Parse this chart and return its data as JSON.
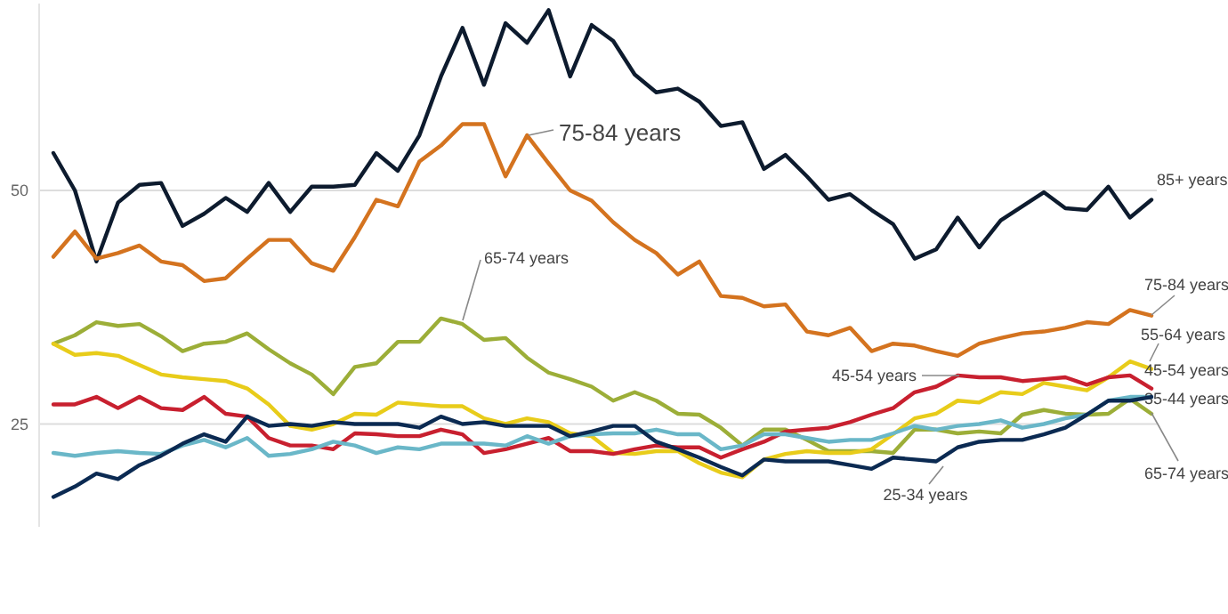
{
  "chart_data": {
    "type": "line",
    "categories": [
      null,
      null,
      null,
      null,
      null,
      null,
      null,
      null,
      null,
      null,
      null,
      null,
      null,
      null,
      null,
      null,
      null,
      null,
      null,
      null,
      null,
      null,
      null,
      null,
      null,
      null,
      null,
      null,
      null,
      null,
      null,
      null,
      null,
      null,
      null,
      null,
      null,
      null,
      null,
      null,
      null,
      null,
      null,
      null,
      null,
      null,
      null,
      null,
      null,
      null,
      null,
      null
    ],
    "ylim": [
      14,
      70
    ],
    "yticks": [
      25,
      50
    ],
    "grid": "y",
    "marker": "none",
    "line_style": "solid",
    "annotations": [
      "75-84 years",
      "65-74 years",
      "45-54 years"
    ],
    "series": [
      {
        "name": "85+ years",
        "color": "#0d1b2e",
        "values": [
          54,
          50,
          42.4,
          48.7,
          50.6,
          50.8,
          46.2,
          47.5,
          49.2,
          47.7,
          50.8,
          47.7,
          50.4,
          50.4,
          50.6,
          54,
          52.1,
          55.9,
          62.2,
          67.4,
          61.3,
          67.9,
          65.8,
          69.3,
          62.2,
          67.7,
          66,
          62.4,
          60.5,
          60.9,
          59.5,
          56.9,
          57.3,
          52.3,
          53.8,
          51.5,
          49,
          49.6,
          47.9,
          46.4,
          42.7,
          43.7,
          47.1,
          43.9,
          46.8,
          48.3,
          49.8,
          48.1,
          47.9,
          50.4,
          47.1,
          49
        ]
      },
      {
        "name": "75-84 years",
        "color": "#d4731f",
        "values": [
          42.9,
          45.6,
          42.7,
          43.3,
          44.1,
          42.4,
          42,
          40.3,
          40.6,
          42.7,
          44.7,
          44.7,
          42.2,
          41.4,
          45,
          49,
          48.3,
          53.1,
          54.8,
          57.1,
          57.1,
          51.5,
          55.9,
          52.9,
          50,
          48.9,
          46.6,
          44.7,
          43.3,
          41,
          42.4,
          38.7,
          38.5,
          37.6,
          37.8,
          34.9,
          34.5,
          35.3,
          32.8,
          33.6,
          33.4,
          32.8,
          32.3,
          33.6,
          34.2,
          34.7,
          34.9,
          35.3,
          35.9,
          35.7,
          37.2,
          36.6
        ]
      },
      {
        "name": "65-74 years",
        "color": "#9cae38",
        "values": [
          33.6,
          34.5,
          35.9,
          35.5,
          35.7,
          34.4,
          32.8,
          33.6,
          33.8,
          34.7,
          33,
          31.5,
          30.3,
          28.2,
          31.1,
          31.5,
          33.8,
          33.8,
          36.3,
          35.7,
          34,
          34.2,
          32.1,
          30.5,
          29.8,
          29,
          27.5,
          28.4,
          27.5,
          26.1,
          26,
          24.6,
          22.7,
          24.4,
          24.4,
          23.3,
          22.1,
          22.1,
          22.1,
          21.9,
          24.4,
          24.4,
          24,
          24.2,
          24,
          26,
          26.5,
          26.1,
          26,
          26.1,
          27.7,
          26.1
        ]
      },
      {
        "name": "55-64 years",
        "color": "#e8cc1a",
        "values": [
          33.6,
          32.4,
          32.6,
          32.3,
          31.3,
          30.3,
          30,
          29.8,
          29.6,
          28.8,
          27.1,
          24.8,
          24.4,
          25,
          26.1,
          26,
          27.3,
          27.1,
          26.9,
          26.9,
          25.6,
          25,
          25.6,
          25.2,
          24,
          23.7,
          21.9,
          21.8,
          22.1,
          22.1,
          20.8,
          19.8,
          19.3,
          21.2,
          21.8,
          22.1,
          21.9,
          21.9,
          22.3,
          23.9,
          25.6,
          26.1,
          27.5,
          27.3,
          28.4,
          28.2,
          29.4,
          29,
          28.6,
          30,
          31.7,
          30.9
        ]
      },
      {
        "name": "45-54 years",
        "color": "#c8202f",
        "values": [
          27.1,
          27.1,
          27.9,
          26.7,
          27.9,
          26.7,
          26.5,
          27.9,
          26.1,
          25.8,
          23.5,
          22.7,
          22.7,
          22.3,
          24,
          23.9,
          23.7,
          23.7,
          24.4,
          23.9,
          21.9,
          22.3,
          22.9,
          23.5,
          22.1,
          22.1,
          21.8,
          22.3,
          22.7,
          22.5,
          22.5,
          21.4,
          22.3,
          23.1,
          24.2,
          24.4,
          24.6,
          25.2,
          26,
          26.7,
          28.4,
          29,
          30.2,
          30,
          30,
          29.6,
          29.8,
          30,
          29.2,
          30,
          30.2,
          28.8
        ]
      },
      {
        "name": "35-44 years",
        "color": "#6ab7c8",
        "values": [
          21.9,
          21.6,
          21.9,
          22.1,
          21.9,
          21.8,
          22.7,
          23.3,
          22.5,
          23.5,
          21.6,
          21.8,
          22.3,
          23.1,
          22.7,
          21.9,
          22.5,
          22.3,
          22.9,
          22.9,
          22.9,
          22.7,
          23.7,
          22.9,
          23.7,
          23.9,
          24,
          24,
          24.4,
          23.9,
          23.9,
          22.3,
          22.7,
          23.9,
          23.9,
          23.5,
          23.1,
          23.3,
          23.3,
          24,
          24.8,
          24.4,
          24.8,
          25,
          25.4,
          24.6,
          25,
          25.6,
          26,
          27.5,
          27.9,
          27.9
        ]
      },
      {
        "name": "25-34 years",
        "color": "#0b2a52",
        "values": [
          17.2,
          18.3,
          19.7,
          19.1,
          20.6,
          21.6,
          22.9,
          23.9,
          23.1,
          25.8,
          24.8,
          25,
          24.8,
          25.2,
          25,
          25,
          25,
          24.6,
          25.8,
          25,
          25.2,
          24.8,
          24.8,
          24.8,
          23.7,
          24.2,
          24.8,
          24.8,
          23.1,
          22.3,
          21.4,
          20.4,
          19.5,
          21.2,
          21,
          21,
          21,
          20.6,
          20.2,
          21.4,
          21.2,
          21,
          22.5,
          23.1,
          23.3,
          23.3,
          23.9,
          24.6,
          26,
          27.5,
          27.5,
          27.9
        ]
      }
    ]
  }
}
